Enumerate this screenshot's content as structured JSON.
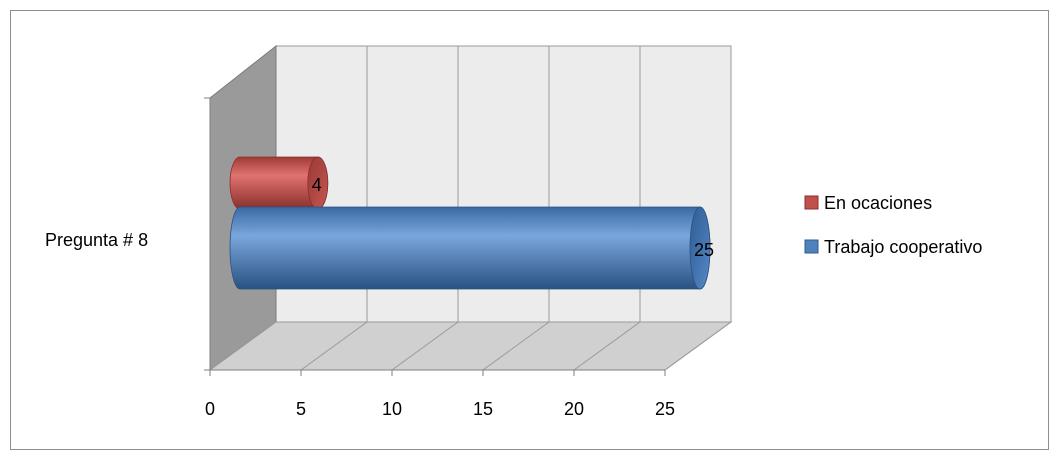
{
  "chart_data": {
    "type": "bar",
    "orientation": "horizontal",
    "style": "3d-cylinder",
    "categories": [
      "Pregunta # 8"
    ],
    "series": [
      {
        "name": "En ocaciones",
        "values": [
          4
        ],
        "color": "#c0504d"
      },
      {
        "name": "Trabajo cooperativo",
        "values": [
          25
        ],
        "color": "#4f81bd"
      }
    ],
    "x_ticks": [
      0,
      5,
      10,
      15,
      20,
      25
    ],
    "xlim": [
      0,
      25
    ],
    "data_labels": [
      "4",
      "25"
    ],
    "legend": "right",
    "grid": true
  }
}
